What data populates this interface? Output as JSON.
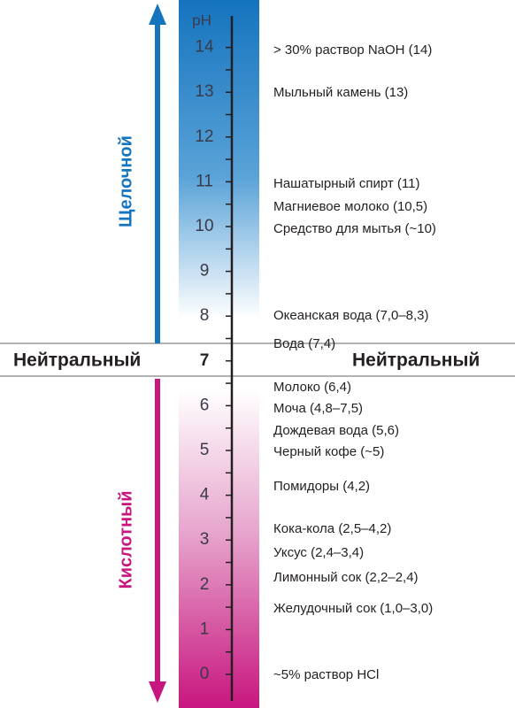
{
  "scale": {
    "unit": "pH",
    "ticks": [
      "0",
      "1",
      "2",
      "3",
      "4",
      "5",
      "6",
      "7",
      "8",
      "9",
      "10",
      "11",
      "12",
      "13",
      "14"
    ]
  },
  "alkaline_label": "Щелочной",
  "acidic_label": "Кислотный",
  "neutral_label_left": "Нейтральный",
  "neutral_label_right": "Нейтральный",
  "items": [
    "> 30% раствор  NaOH (14)",
    "Мыльный камень (13)",
    "Нашатырный спирт (11)",
    "Магниевое молоко (10,5)",
    "Средство для мытья (~10)",
    "Океанская  вода (7,0–8,3)",
    "Вода (7,4)",
    "Молоко (6,4)",
    "Моча (4,8–7,5)",
    "Дождевая вода (5,6)",
    "Черный кофе (~5)",
    "Помидоры (4,2)",
    "Кока-кола (2,5–4,2)",
    "Уксус (2,4–3,4)",
    "Лимонный сок (2,2–2,4)",
    "Желудочный сок (1,0–3,0)",
    "~5% раствор HCl"
  ]
}
